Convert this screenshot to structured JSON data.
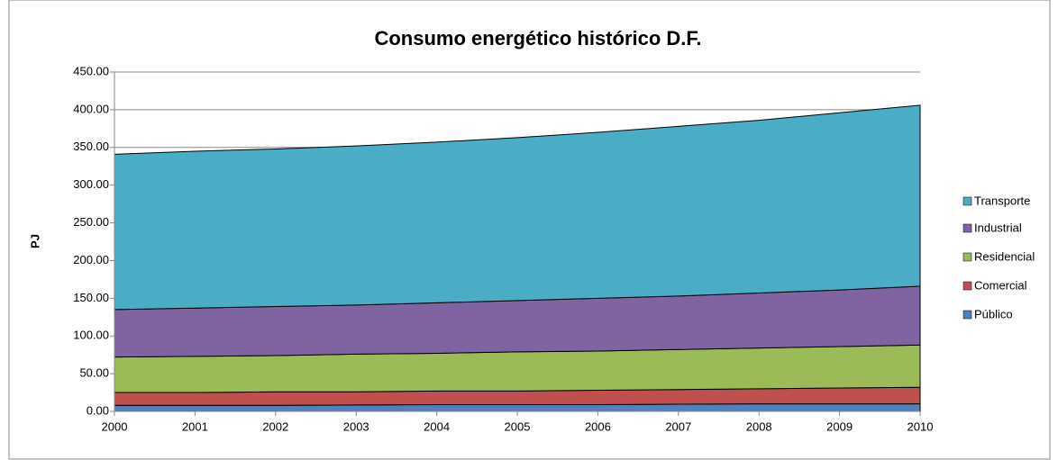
{
  "chart_data": {
    "type": "stacked-area",
    "title": "Consumo energético histórico D.F.",
    "y_label": "PJ",
    "categories": [
      "2000",
      "2001",
      "2002",
      "2003",
      "2004",
      "2005",
      "2006",
      "2007",
      "2008",
      "2009",
      "2010"
    ],
    "series": [
      {
        "name": "Público",
        "color": "#4f81bd",
        "values": [
          8,
          8,
          8,
          8.5,
          9,
          9,
          9,
          9.5,
          10,
          10,
          10
        ]
      },
      {
        "name": "Comercial",
        "color": "#c0504d",
        "values": [
          17,
          17,
          18,
          17.5,
          18,
          18,
          19,
          19.5,
          20,
          21,
          22
        ]
      },
      {
        "name": "Residencial",
        "color": "#9bbb59",
        "values": [
          47,
          48,
          48,
          50,
          50,
          52,
          52,
          53,
          54,
          55,
          56
        ]
      },
      {
        "name": "Industrial",
        "color": "#8064a2",
        "values": [
          63,
          64,
          65,
          65,
          67,
          68,
          70,
          71,
          73,
          75,
          78
        ]
      },
      {
        "name": "Transporte",
        "color": "#4bacc6",
        "values": [
          206,
          208,
          209,
          211,
          213,
          216,
          220,
          225,
          229,
          235,
          240
        ]
      }
    ],
    "ylim": [
      0,
      450
    ],
    "yticks": [
      {
        "value": 0,
        "label": "0.00"
      },
      {
        "value": 50,
        "label": "50.00"
      },
      {
        "value": 100,
        "label": "100.00"
      },
      {
        "value": 150,
        "label": "150.00"
      },
      {
        "value": 200,
        "label": "200.00"
      },
      {
        "value": 250,
        "label": "250.00"
      },
      {
        "value": 300,
        "label": "300.00"
      },
      {
        "value": 350,
        "label": "350.00"
      },
      {
        "value": 400,
        "label": "400.00"
      },
      {
        "value": 450,
        "label": "450.00"
      }
    ],
    "grid": true,
    "legend": "right"
  }
}
